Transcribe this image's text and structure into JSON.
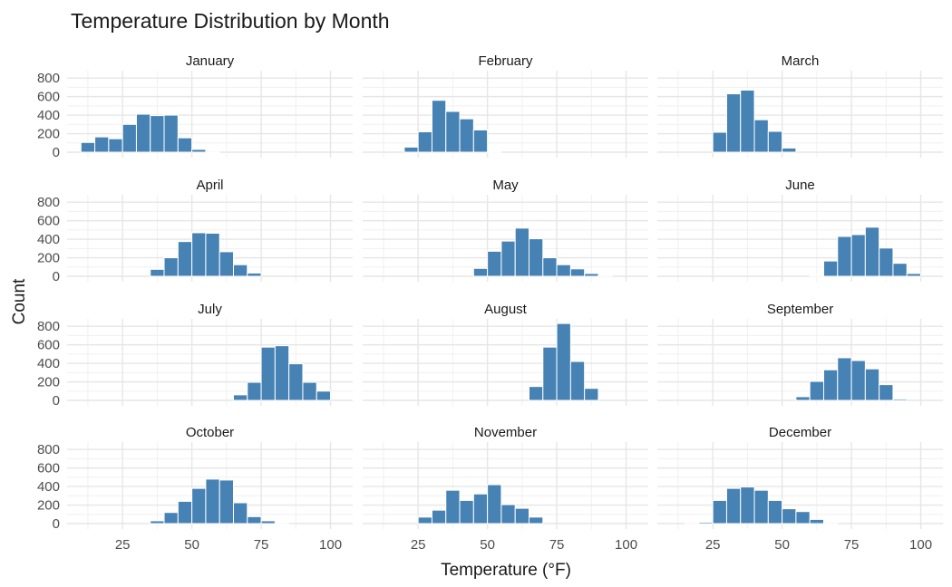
{
  "chart_data": {
    "type": "bar",
    "title": "Temperature Distribution by Month",
    "xlabel": "Temperature (°F)",
    "ylabel": "Count",
    "xlim": [
      5,
      108
    ],
    "ylim": [
      0,
      880
    ],
    "x_ticks": [
      25,
      50,
      75,
      100
    ],
    "y_ticks": [
      0,
      200,
      400,
      600,
      800
    ],
    "bin_width": 5,
    "bar_color": "#4682b4",
    "grid": true,
    "legend": "none",
    "panels": [
      {
        "name": "January",
        "bin_centers": [
          12.5,
          17.5,
          22.5,
          27.5,
          32.5,
          37.5,
          42.5,
          47.5,
          52.5,
          57.5
        ],
        "values": [
          105,
          165,
          145,
          300,
          410,
          395,
          400,
          155,
          30,
          0
        ]
      },
      {
        "name": "February",
        "bin_centers": [
          22.5,
          27.5,
          32.5,
          37.5,
          42.5,
          47.5,
          52.5
        ],
        "values": [
          55,
          220,
          560,
          440,
          360,
          240,
          5
        ]
      },
      {
        "name": "March",
        "bin_centers": [
          27.5,
          32.5,
          37.5,
          42.5,
          47.5,
          52.5
        ],
        "values": [
          215,
          630,
          670,
          350,
          225,
          45
        ]
      },
      {
        "name": "April",
        "bin_centers": [
          37.5,
          42.5,
          47.5,
          52.5,
          57.5,
          62.5,
          67.5,
          72.5
        ],
        "values": [
          75,
          200,
          375,
          470,
          465,
          265,
          125,
          35
        ]
      },
      {
        "name": "May",
        "bin_centers": [
          47.5,
          52.5,
          57.5,
          62.5,
          67.5,
          72.5,
          77.5,
          82.5,
          87.5,
          92.5
        ],
        "values": [
          85,
          270,
          380,
          520,
          405,
          200,
          125,
          80,
          30,
          10
        ]
      },
      {
        "name": "June",
        "bin_centers": [
          62.5,
          67.5,
          72.5,
          77.5,
          82.5,
          87.5,
          92.5,
          97.5
        ],
        "values": [
          10,
          165,
          430,
          450,
          530,
          305,
          140,
          30
        ]
      },
      {
        "name": "July",
        "bin_centers": [
          67.5,
          72.5,
          77.5,
          82.5,
          87.5,
          92.5,
          97.5
        ],
        "values": [
          60,
          195,
          575,
          590,
          395,
          195,
          100
        ]
      },
      {
        "name": "August",
        "bin_centers": [
          67.5,
          72.5,
          77.5,
          82.5,
          87.5
        ],
        "values": [
          150,
          575,
          830,
          420,
          130
        ]
      },
      {
        "name": "September",
        "bin_centers": [
          57.5,
          62.5,
          67.5,
          72.5,
          77.5,
          82.5,
          87.5,
          92.5
        ],
        "values": [
          40,
          205,
          330,
          460,
          430,
          340,
          170,
          15
        ]
      },
      {
        "name": "October",
        "bin_centers": [
          37.5,
          42.5,
          47.5,
          52.5,
          57.5,
          62.5,
          67.5,
          72.5,
          77.5,
          82.5
        ],
        "values": [
          30,
          120,
          240,
          380,
          480,
          470,
          225,
          75,
          30,
          0
        ]
      },
      {
        "name": "November",
        "bin_centers": [
          27.5,
          32.5,
          37.5,
          42.5,
          47.5,
          52.5,
          57.5,
          62.5,
          67.5
        ],
        "values": [
          70,
          145,
          360,
          250,
          320,
          420,
          205,
          165,
          70
        ]
      },
      {
        "name": "December",
        "bin_centers": [
          17.5,
          22.5,
          27.5,
          32.5,
          37.5,
          42.5,
          47.5,
          52.5,
          57.5,
          62.5,
          67.5
        ],
        "values": [
          10,
          15,
          250,
          380,
          395,
          360,
          250,
          160,
          130,
          45,
          0
        ]
      }
    ]
  }
}
